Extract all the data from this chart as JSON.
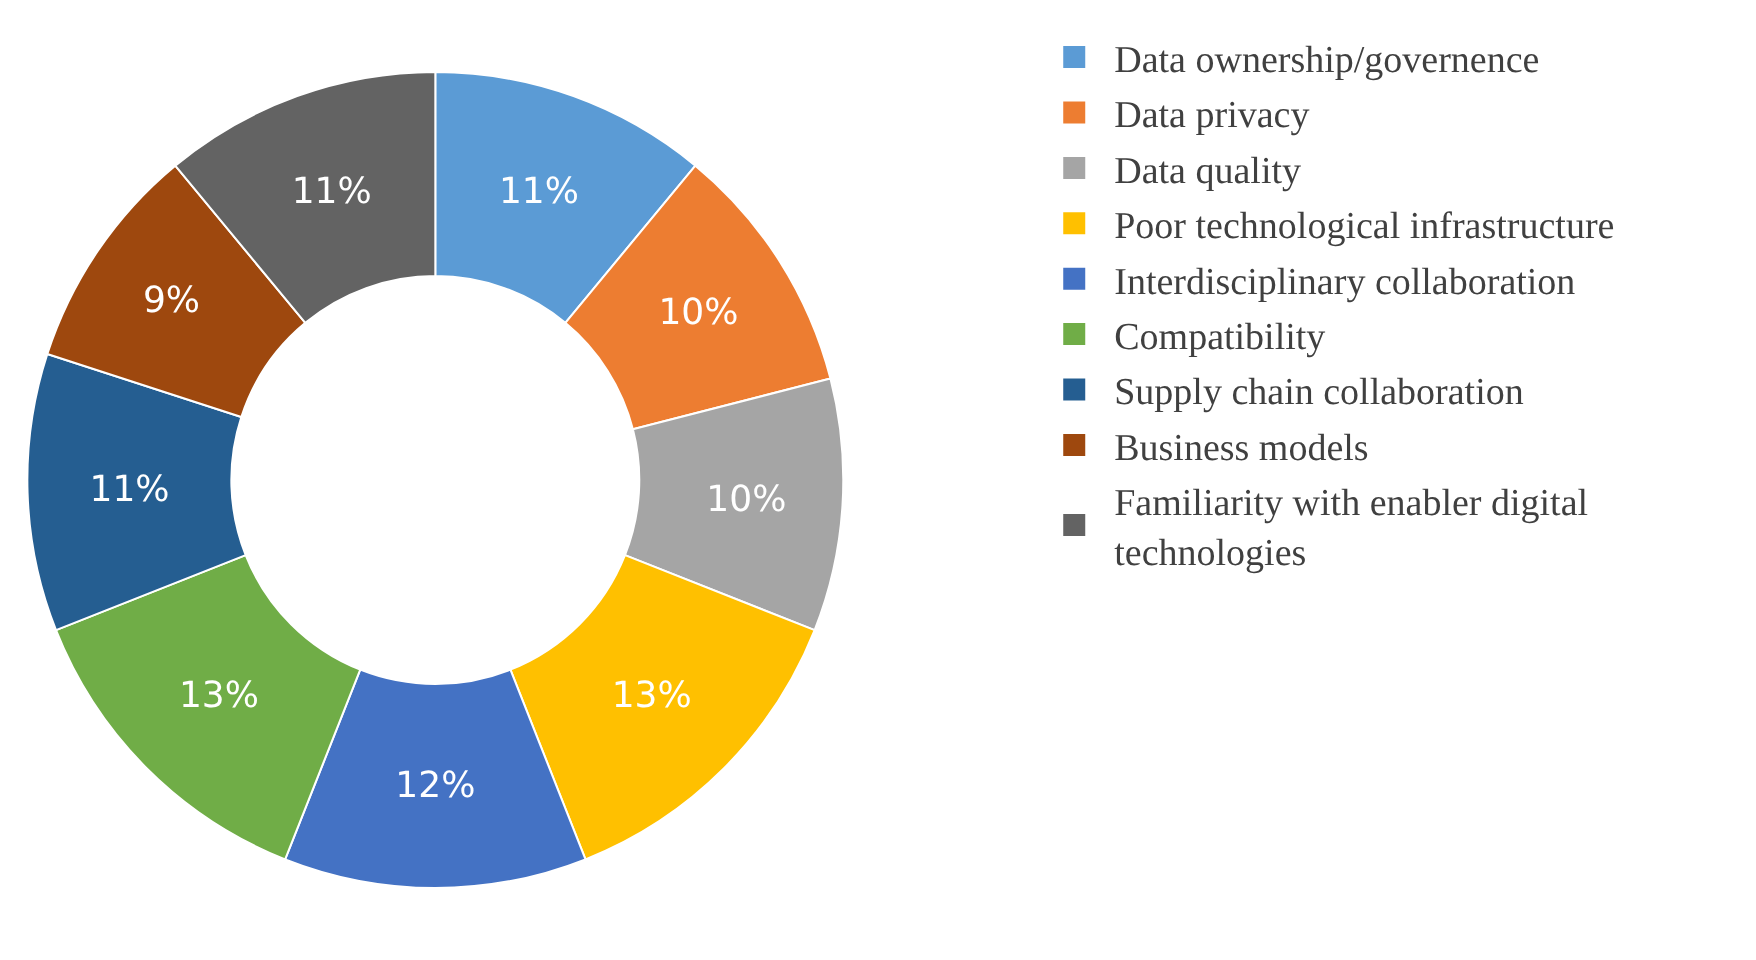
{
  "chart_data": {
    "type": "donut",
    "categories": [
      "Data ownership/governence",
      "Data privacy",
      "Data quality",
      "Poor technological infrastructure",
      "Interdisciplinary collaboration",
      "Compatibility",
      "Supply chain collaboration",
      "Business models",
      "Familiarity with enabler digital technologies"
    ],
    "values": [
      11,
      10,
      10,
      13,
      12,
      13,
      11,
      9,
      11
    ],
    "value_labels": [
      "11%",
      "10%",
      "10%",
      "13%",
      "12%",
      "13%",
      "11%",
      "9%",
      "11%"
    ],
    "colors": [
      "#5b9bd5",
      "#ed7d31",
      "#a5a5a5",
      "#ffc000",
      "#4472c4",
      "#70ad47",
      "#255e91",
      "#9e480e",
      "#636363"
    ],
    "legend": "right"
  }
}
